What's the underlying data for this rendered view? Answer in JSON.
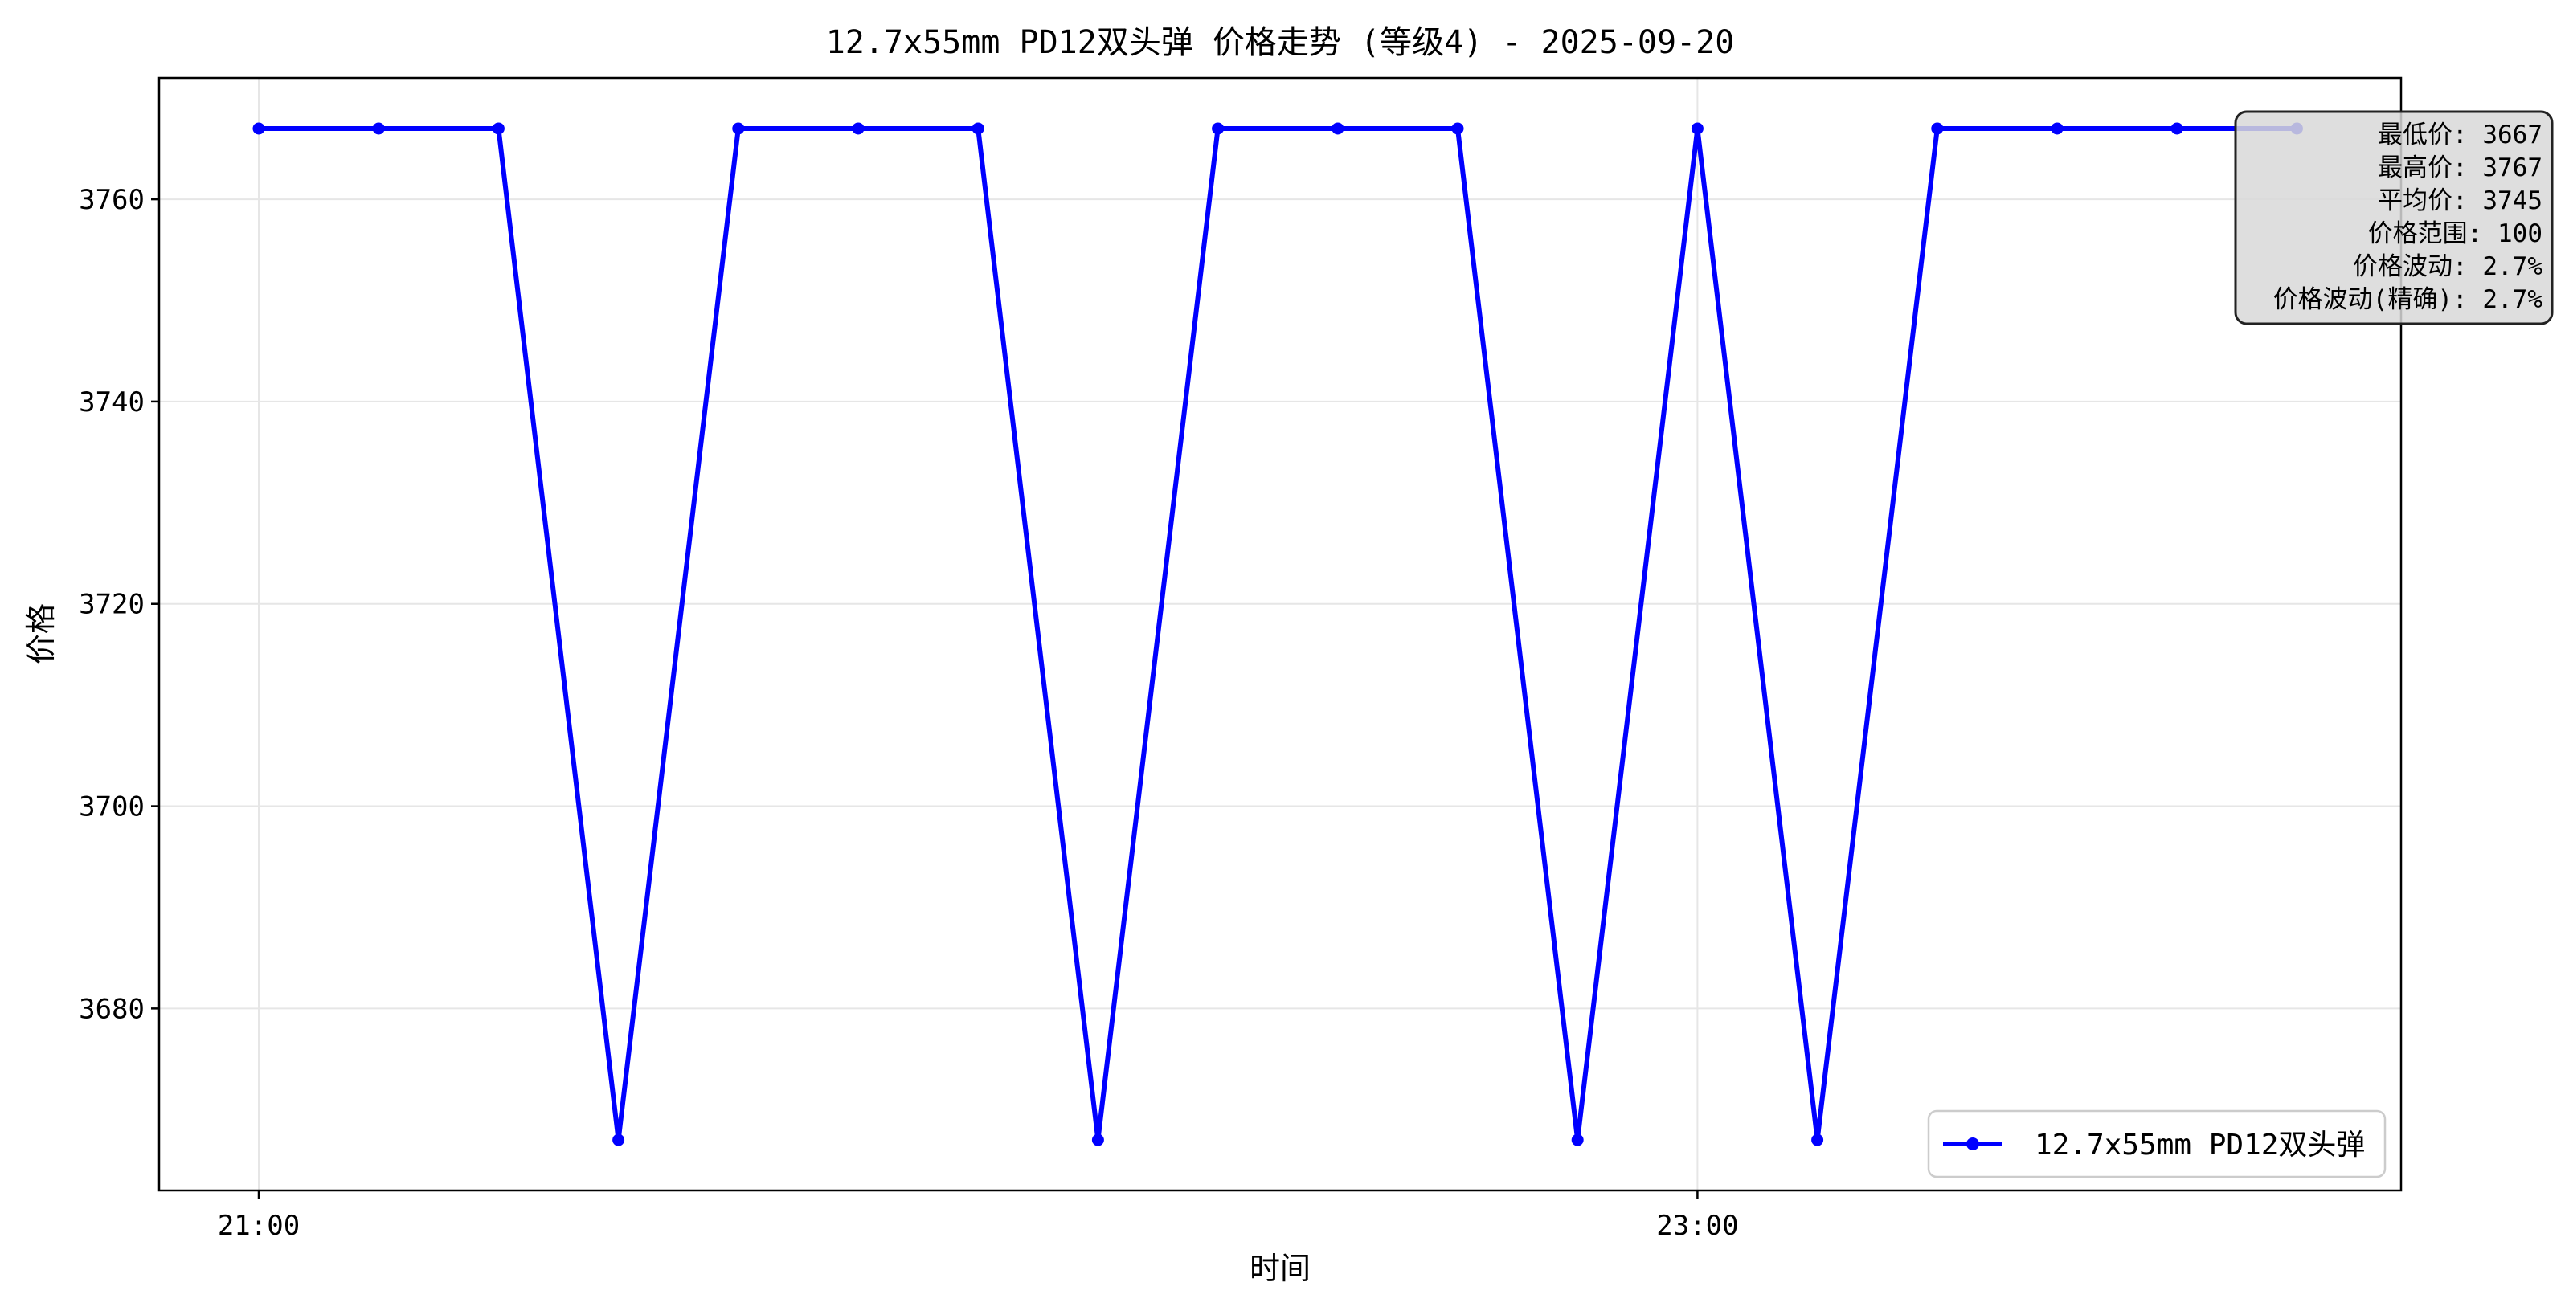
{
  "chart_data": {
    "type": "line",
    "title": "12.7x55mm PD12双头弹 价格走势 (等级4) - 2025-09-20",
    "xlabel": "时间",
    "ylabel": "价格",
    "x_ticks": [
      "21:00",
      "23:00"
    ],
    "y_ticks": [
      3680,
      3700,
      3720,
      3740,
      3760
    ],
    "ylim": [
      3662,
      3772
    ],
    "grid": true,
    "legend_position": "lower-right",
    "series": [
      {
        "name": "12.7x55mm PD12双头弹",
        "color": "#0000ff",
        "x": [
          "21:00",
          "21:10",
          "21:20",
          "21:30",
          "21:40",
          "21:50",
          "22:00",
          "22:10",
          "22:20",
          "22:30",
          "22:40",
          "22:50",
          "23:00",
          "23:10",
          "23:20",
          "23:30",
          "23:40",
          "23:50"
        ],
        "values": [
          3767,
          3767,
          3767,
          3667,
          3767,
          3767,
          3767,
          3667,
          3767,
          3767,
          3767,
          3667,
          3767,
          3667,
          3767,
          3767,
          3767,
          3767
        ]
      }
    ],
    "stats_box": {
      "lines": [
        "最低价: 3667",
        "最高价: 3767",
        "平均价: 3745",
        "价格范围: 100",
        "价格波动: 2.7%",
        "价格波动(精确): 2.7%"
      ],
      "position": "top-right"
    }
  }
}
